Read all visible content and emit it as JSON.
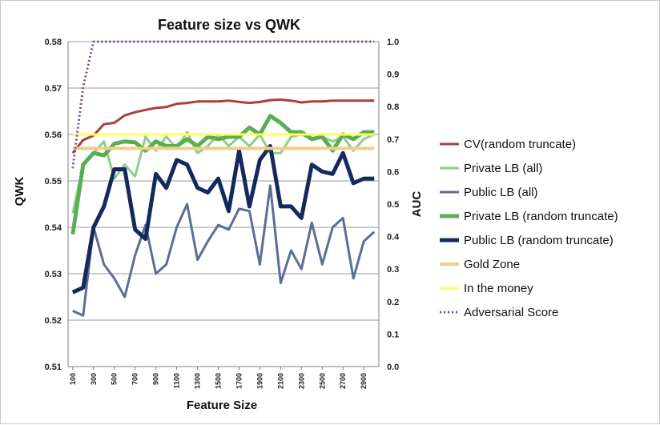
{
  "chart_data": {
    "type": "line",
    "title": "Feature size vs QWK",
    "xlabel": "Feature Size",
    "ylabel": "QWK",
    "y2label": "AUC",
    "ylim": [
      0.51,
      0.58
    ],
    "y2lim": [
      0.0,
      1.0
    ],
    "grid": true,
    "legend_position": "right",
    "x": [
      100,
      200,
      300,
      400,
      500,
      600,
      700,
      800,
      900,
      1000,
      1100,
      1200,
      1300,
      1400,
      1500,
      1600,
      1700,
      1800,
      1900,
      2000,
      2100,
      2200,
      2300,
      2400,
      2500,
      2600,
      2700,
      2800,
      2900,
      3000
    ],
    "x_tick_labels": [
      "100",
      "300",
      "500",
      "700",
      "900",
      "1100",
      "1300",
      "1500",
      "1700",
      "1900",
      "2100",
      "2300",
      "2500",
      "2700",
      "2900"
    ],
    "y_tick_labels": [
      "0.51",
      "0.52",
      "0.53",
      "0.54",
      "0.55",
      "0.56",
      "0.57",
      "0.58"
    ],
    "y2_tick_labels": [
      "0.0",
      "0.1",
      "0.2",
      "0.3",
      "0.4",
      "0.5",
      "0.6",
      "0.7",
      "0.8",
      "0.9",
      "1.0"
    ],
    "series": [
      {
        "name": "CV(random truncate)",
        "axis": "left",
        "color": "#a9403b",
        "width": 3,
        "style": "solid",
        "values": [
          0.556,
          0.5588,
          0.5598,
          0.5622,
          0.5625,
          0.5641,
          0.5648,
          0.5653,
          0.5657,
          0.5659,
          0.5666,
          0.5668,
          0.5671,
          0.5671,
          0.5671,
          0.5673,
          0.567,
          0.5668,
          0.567,
          0.5674,
          0.5675,
          0.5673,
          0.5669,
          0.5671,
          0.5671,
          0.5673,
          0.5673,
          0.5673,
          0.5673,
          0.5673
        ]
      },
      {
        "name": "Private LB (all)",
        "axis": "left",
        "color": "#8fcd8a",
        "width": 3,
        "style": "solid",
        "values": [
          0.543,
          0.5535,
          0.556,
          0.5585,
          0.5505,
          0.5535,
          0.551,
          0.5595,
          0.5565,
          0.5595,
          0.557,
          0.5605,
          0.556,
          0.5575,
          0.56,
          0.5575,
          0.5595,
          0.5575,
          0.56,
          0.556,
          0.556,
          0.5595,
          0.56,
          0.559,
          0.5595,
          0.5585,
          0.5595,
          0.5565,
          0.559,
          0.56
        ]
      },
      {
        "name": "Public LB (all)",
        "axis": "left",
        "color": "#5a6e98",
        "width": 3,
        "style": "solid",
        "values": [
          0.522,
          0.521,
          0.54,
          0.532,
          0.529,
          0.525,
          0.534,
          0.5405,
          0.53,
          0.532,
          0.54,
          0.545,
          0.533,
          0.537,
          0.5405,
          0.5395,
          0.544,
          0.5435,
          0.532,
          0.549,
          0.528,
          0.535,
          0.531,
          0.541,
          0.532,
          0.54,
          0.542,
          0.529,
          0.537,
          0.539
        ]
      },
      {
        "name": "Private LB (random truncate)",
        "axis": "left",
        "color": "#5aae52",
        "width": 5,
        "style": "solid",
        "values": [
          0.5385,
          0.5535,
          0.556,
          0.5555,
          0.558,
          0.5585,
          0.5583,
          0.5565,
          0.5585,
          0.5575,
          0.5575,
          0.559,
          0.5575,
          0.5595,
          0.559,
          0.5595,
          0.5595,
          0.5615,
          0.56,
          0.564,
          0.5625,
          0.5605,
          0.5605,
          0.559,
          0.5595,
          0.5565,
          0.56,
          0.559,
          0.5605,
          0.5605
        ]
      },
      {
        "name": "Public LB (random truncate)",
        "axis": "left",
        "color": "#142a5e",
        "width": 5,
        "style": "solid",
        "values": [
          0.526,
          0.527,
          0.54,
          0.5445,
          0.5525,
          0.5525,
          0.5395,
          0.5375,
          0.5515,
          0.5485,
          0.5545,
          0.5535,
          0.5485,
          0.5475,
          0.5505,
          0.5435,
          0.5565,
          0.5445,
          0.5545,
          0.5575,
          0.5445,
          0.5445,
          0.542,
          0.5535,
          0.552,
          0.5515,
          0.556,
          0.5495,
          0.5505,
          0.5505
        ]
      },
      {
        "name": "Gold Zone",
        "axis": "left",
        "color": "#f2cd86",
        "width": 4,
        "style": "solid",
        "values": [
          0.557,
          0.557,
          0.557,
          0.557,
          0.557,
          0.557,
          0.557,
          0.557,
          0.557,
          0.557,
          0.557,
          0.557,
          0.557,
          0.557,
          0.557,
          0.557,
          0.557,
          0.557,
          0.557,
          0.557,
          0.557,
          0.557,
          0.557,
          0.557,
          0.557,
          0.557,
          0.557,
          0.557,
          0.557,
          0.557
        ]
      },
      {
        "name": "In the money",
        "axis": "left",
        "color": "#ffff55",
        "width": 3,
        "style": "solid",
        "values": [
          0.56,
          0.56,
          0.56,
          0.56,
          0.56,
          0.56,
          0.56,
          0.56,
          0.56,
          0.56,
          0.56,
          0.56,
          0.56,
          0.56,
          0.56,
          0.56,
          0.56,
          0.56,
          0.56,
          0.56,
          0.56,
          0.56,
          0.56,
          0.56,
          0.56,
          0.56,
          0.56,
          0.56,
          0.56,
          0.56
        ]
      },
      {
        "name": "Adversarial Score",
        "axis": "right",
        "color": "#7a4ca2",
        "width": 3,
        "style": "dotted",
        "values": [
          0.61,
          0.86,
          1.0,
          1.0,
          1.0,
          1.0,
          1.0,
          1.0,
          1.0,
          1.0,
          1.0,
          1.0,
          1.0,
          1.0,
          1.0,
          1.0,
          1.0,
          1.0,
          1.0,
          1.0,
          1.0,
          1.0,
          1.0,
          1.0,
          1.0,
          1.0,
          1.0,
          1.0,
          1.0,
          1.0
        ]
      }
    ]
  }
}
